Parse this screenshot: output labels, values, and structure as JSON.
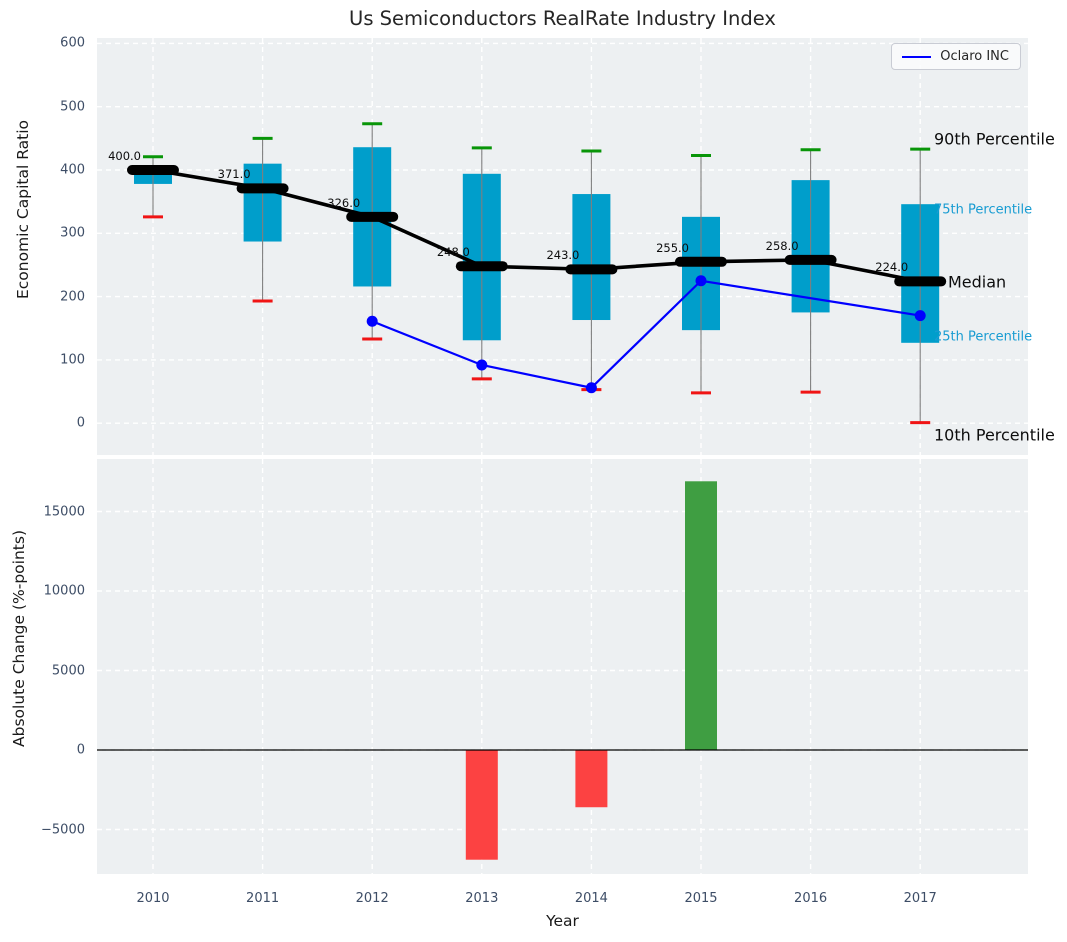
{
  "title": "Us Semiconductors RealRate Industry Index",
  "colors": {
    "box_fill": "#009ECB",
    "whisker": "#7f7f7f",
    "cap_high_green": "#089508",
    "cap_low_red": "#f01414",
    "median_line": "#000000",
    "oclaro_line": "#0000ff",
    "bar_negative": "#fc4242",
    "bar_positive": "#3f9e42",
    "plot_background": "#edf0f2",
    "gridline": "#ffffff",
    "tick_text": "#3d4d66",
    "annotation_cyan": "#189cd2"
  },
  "legend": {
    "label": "Oclaro INC"
  },
  "chart_data": [
    {
      "type": "boxplot+line",
      "title": "Us Semiconductors RealRate Industry Index",
      "ylabel": "Economic Capital Ratio",
      "ylim": [
        -50,
        608
      ],
      "grid": true,
      "legend_position": "upper right",
      "yticks": [
        0,
        100,
        200,
        300,
        400,
        500,
        600
      ],
      "ytick_labels": [
        "0",
        "100",
        "200",
        "300",
        "400",
        "500",
        "600"
      ],
      "categories": [
        "2010",
        "2011",
        "2012",
        "2013",
        "2014",
        "2015",
        "2016",
        "2017"
      ],
      "percentiles": {
        "p90": [
          421,
          450,
          473,
          435,
          430,
          423,
          432,
          433
        ],
        "p75": [
          405,
          410,
          436,
          394,
          362,
          326,
          384,
          346
        ],
        "median": [
          400,
          371,
          326,
          248,
          243,
          255,
          258,
          224
        ],
        "p25": [
          378,
          287,
          216,
          131,
          163,
          147,
          175,
          127
        ],
        "p10": [
          326,
          193,
          133,
          70,
          53,
          48,
          49,
          1
        ]
      },
      "median_labels": [
        "400.0",
        "371.0",
        "326.0",
        "248.0",
        "243.0",
        "255.0",
        "258.0",
        "224.0"
      ],
      "series": [
        {
          "name": "Oclaro INC",
          "x": [
            "2012",
            "2013",
            "2014",
            "2015",
            "2017"
          ],
          "values": [
            161,
            92,
            56,
            225,
            170
          ]
        }
      ],
      "annotations": [
        {
          "text": "90th Percentile",
          "style": "black-large",
          "anchor_value": 433
        },
        {
          "text": "75th Percentile",
          "style": "cyan-small",
          "anchor_value": 346
        },
        {
          "text": "Median",
          "style": "black-large",
          "anchor_value": 224
        },
        {
          "text": "25th Percentile",
          "style": "cyan-small",
          "anchor_value": 127
        },
        {
          "text": "10th Percentile",
          "style": "black-large",
          "anchor_value": 1
        }
      ]
    },
    {
      "type": "bar",
      "ylabel": "Absolute Change (%-points)",
      "xlabel": "Year",
      "ylim": [
        -7800,
        18300
      ],
      "grid": true,
      "yticks": [
        -5000,
        0,
        5000,
        10000,
        15000
      ],
      "ytick_labels": [
        "−5000",
        "0",
        "5000",
        "10000",
        "15000"
      ],
      "categories": [
        "2010",
        "2011",
        "2012",
        "2013",
        "2014",
        "2015",
        "2016",
        "2017"
      ],
      "values": [
        null,
        null,
        null,
        -6900,
        -3600,
        16900,
        null,
        null
      ]
    }
  ]
}
